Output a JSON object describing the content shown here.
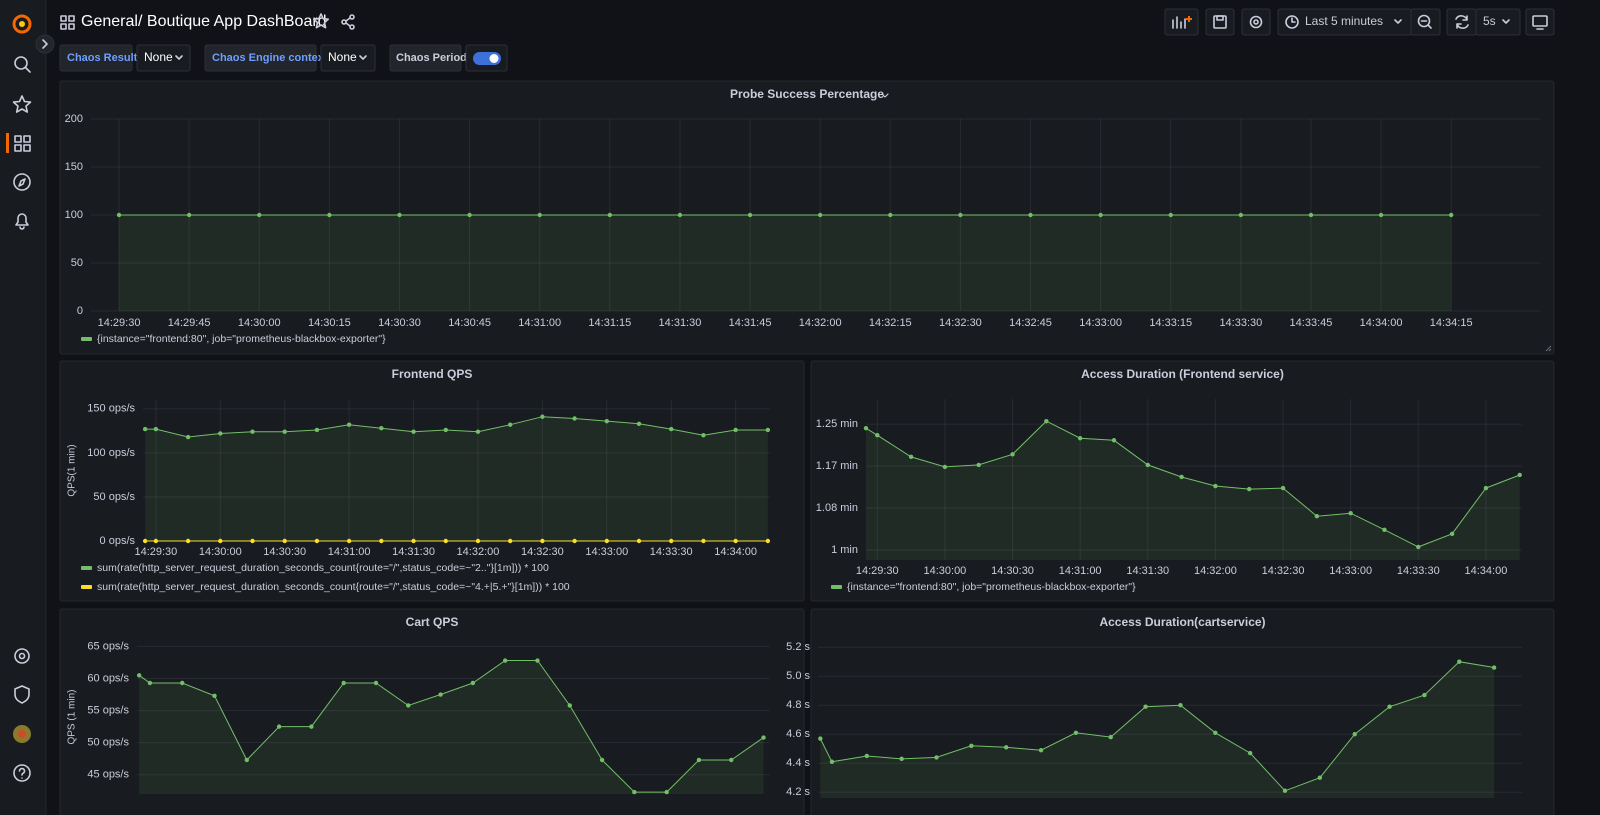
{
  "header": {
    "folder": "General",
    "title": "/ Boutique App DashBoard",
    "time_range": "Last 5 minutes",
    "refresh_interval": "5s"
  },
  "variables": [
    {
      "label": "Chaos Result",
      "value": "None"
    },
    {
      "label": "Chaos Engine context",
      "value": "None"
    },
    {
      "label": "Chaos Period",
      "enabled": true
    }
  ],
  "panels": [
    {
      "type": "line",
      "title": "Probe Success Percentage",
      "grid": true,
      "x": [
        "14:29:30",
        "14:29:45",
        "14:30:00",
        "14:30:15",
        "14:30:30",
        "14:30:45",
        "14:31:00",
        "14:31:15",
        "14:31:30",
        "14:31:45",
        "14:32:00",
        "14:32:15",
        "14:32:30",
        "14:32:45",
        "14:33:00",
        "14:33:15",
        "14:33:30",
        "14:33:45",
        "14:34:00",
        "14:34:15"
      ],
      "xlim": [
        "14:29:24",
        "14:34:34"
      ],
      "xticks": [
        "14:29:30",
        "14:29:45",
        "14:30:00",
        "14:30:15",
        "14:30:30",
        "14:30:45",
        "14:31:00",
        "14:31:15",
        "14:31:30",
        "14:31:45",
        "14:32:00",
        "14:32:15",
        "14:32:30",
        "14:32:45",
        "14:33:00",
        "14:33:15",
        "14:33:30",
        "14:33:45",
        "14:34:00",
        "14:34:15"
      ],
      "ylim": [
        0,
        200
      ],
      "yticks": [
        0,
        50,
        100,
        150,
        200
      ],
      "series": [
        {
          "name": "{instance=\"frontend:80\", job=\"prometheus-blackbox-exporter\"}",
          "color": "#73bf69",
          "values": [
            100,
            100,
            100,
            100,
            100,
            100,
            100,
            100,
            100,
            100,
            100,
            100,
            100,
            100,
            100,
            100,
            100,
            100,
            100,
            100
          ]
        }
      ]
    },
    {
      "type": "line",
      "title": "Frontend QPS",
      "y_label": "QPS(1 min)",
      "grid": true,
      "x": [
        "14:29:25",
        "14:29:30",
        "14:29:45",
        "14:30:00",
        "14:30:15",
        "14:30:30",
        "14:30:45",
        "14:31:00",
        "14:31:15",
        "14:31:30",
        "14:31:45",
        "14:32:00",
        "14:32:15",
        "14:32:30",
        "14:32:45",
        "14:33:00",
        "14:33:15",
        "14:33:30",
        "14:33:45",
        "14:34:00",
        "14:34:15"
      ],
      "xlim": [
        "14:29:24",
        "14:34:16"
      ],
      "xticks": [
        "14:29:30",
        "14:30:00",
        "14:30:30",
        "14:31:00",
        "14:31:30",
        "14:32:00",
        "14:32:30",
        "14:33:00",
        "14:33:30",
        "14:34:00"
      ],
      "ylim": [
        0,
        160
      ],
      "yticks": [
        {
          "value": 0,
          "label": "0 ops/s"
        },
        {
          "value": 50,
          "label": "50 ops/s"
        },
        {
          "value": 100,
          "label": "100 ops/s"
        },
        {
          "value": 150,
          "label": "150 ops/s"
        }
      ],
      "series": [
        {
          "name": "sum(rate(http_server_request_duration_seconds_count{route=\"/\",status_code=~\"2..\"}[1m])) * 100",
          "color": "#73bf69",
          "values": [
            127,
            127,
            118,
            122,
            124,
            124,
            126,
            132,
            128,
            124,
            126,
            124,
            132,
            141,
            139,
            136,
            133,
            127,
            120,
            126,
            126
          ]
        },
        {
          "name": "sum(rate(http_server_request_duration_seconds_count{route=\"/\",status_code=~\"4.+|5.+\"}[1m])) * 100",
          "color": "#fade2a",
          "values": [
            0,
            0,
            0,
            0,
            0,
            0,
            0,
            0,
            0,
            0,
            0,
            0,
            0,
            0,
            0,
            0,
            0,
            0,
            0,
            0,
            0
          ]
        }
      ]
    },
    {
      "type": "line",
      "title": "Access Duration (Frontend service)",
      "grid": true,
      "x": [
        "14:29:25",
        "14:29:30",
        "14:29:45",
        "14:30:00",
        "14:30:15",
        "14:30:30",
        "14:30:45",
        "14:31:00",
        "14:31:15",
        "14:31:30",
        "14:31:45",
        "14:32:00",
        "14:32:15",
        "14:32:30",
        "14:32:45",
        "14:33:00",
        "14:33:15",
        "14:33:30",
        "14:33:45",
        "14:34:00",
        "14:34:15"
      ],
      "xlim": [
        "14:29:25",
        "14:34:16"
      ],
      "xticks": [
        "14:29:30",
        "14:30:00",
        "14:30:30",
        "14:31:00",
        "14:31:30",
        "14:32:00",
        "14:32:30",
        "14:33:00",
        "14:33:30",
        "14:34:00"
      ],
      "ylim": [
        0.98,
        1.3
      ],
      "yticks": [
        {
          "value": 1,
          "label": "1 min"
        },
        {
          "value": 1.0833,
          "label": "1.08 min"
        },
        {
          "value": 1.1667,
          "label": "1.17 min"
        },
        {
          "value": 1.25,
          "label": "1.25 min"
        }
      ],
      "series": [
        {
          "name": "{instance=\"frontend:80\", job=\"prometheus-blackbox-exporter\"}",
          "color": "#73bf69",
          "values": [
            1.242,
            1.228,
            1.185,
            1.165,
            1.169,
            1.19,
            1.256,
            1.222,
            1.218,
            1.169,
            1.145,
            1.127,
            1.121,
            1.123,
            1.067,
            1.073,
            1.04,
            1.006,
            1.032,
            1.123,
            1.149
          ]
        }
      ]
    },
    {
      "type": "line",
      "title": "Cart QPS",
      "y_label": "QPS (1 min)",
      "grid": true,
      "x": [
        "14:29:25",
        "14:29:30",
        "14:29:45",
        "14:30:00",
        "14:30:15",
        "14:30:30",
        "14:30:45",
        "14:31:00",
        "14:31:15",
        "14:31:30",
        "14:31:45",
        "14:32:00",
        "14:32:15",
        "14:32:30",
        "14:32:45",
        "14:33:00",
        "14:33:15",
        "14:33:30",
        "14:33:45",
        "14:34:00",
        "14:34:15"
      ],
      "xlim": [
        "14:29:24",
        "14:34:18"
      ],
      "ylim": [
        42,
        66
      ],
      "yticks": [
        {
          "value": 45,
          "label": "45 ops/s"
        },
        {
          "value": 50,
          "label": "50 ops/s"
        },
        {
          "value": 55,
          "label": "55 ops/s"
        },
        {
          "value": 60,
          "label": "60 ops/s"
        },
        {
          "value": 65,
          "label": "65 ops/s"
        }
      ],
      "series": [
        {
          "color": "#73bf69",
          "values": [
            60.5,
            59.3,
            59.3,
            57.3,
            47.3,
            52.5,
            52.5,
            59.3,
            59.3,
            55.8,
            57.5,
            59.3,
            62.8,
            62.8,
            55.8,
            47.3,
            42.3,
            42.3,
            47.3,
            47.3,
            50.8
          ]
        }
      ]
    },
    {
      "type": "line",
      "title": "Access Duration(cartservice)",
      "grid": true,
      "x": [
        "14:29:25",
        "14:29:30",
        "14:29:45",
        "14:30:00",
        "14:30:15",
        "14:30:30",
        "14:30:45",
        "14:31:00",
        "14:31:15",
        "14:31:30",
        "14:31:45",
        "14:32:00",
        "14:32:15",
        "14:32:30",
        "14:32:45",
        "14:33:00",
        "14:33:15",
        "14:33:30",
        "14:33:45",
        "14:34:00",
        "14:34:15"
      ],
      "xlim": [
        "14:29:24",
        "14:34:27"
      ],
      "ylim": [
        4.16,
        5.25
      ],
      "yticks": [
        {
          "value": 4.2,
          "label": "4.2 s"
        },
        {
          "value": 4.4,
          "label": "4.4 s"
        },
        {
          "value": 4.6,
          "label": "4.6 s"
        },
        {
          "value": 4.8,
          "label": "4.8 s"
        },
        {
          "value": 5,
          "label": "5.0 s"
        },
        {
          "value": 5.2,
          "label": "5.2 s"
        }
      ],
      "series": [
        {
          "color": "#73bf69",
          "values": [
            4.57,
            4.41,
            4.45,
            4.43,
            4.44,
            4.52,
            4.51,
            4.49,
            4.61,
            4.58,
            4.79,
            4.8,
            4.61,
            4.47,
            4.21,
            4.3,
            4.6,
            4.79,
            4.87,
            5.1,
            5.06
          ]
        }
      ]
    }
  ]
}
